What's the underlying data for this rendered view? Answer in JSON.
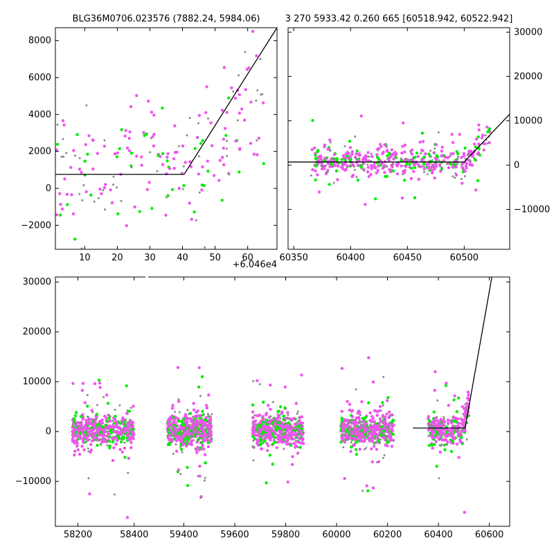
{
  "header": {
    "left_title": "BLG36M0706.023576 (7882.24, 5984.06)",
    "right_title": "3 270 5933.42 0.260 665 [60518.942, 60522.942]",
    "offset_label": "+6.046e4"
  },
  "colors": {
    "green": "#00ee00",
    "magenta": "#ee55ee",
    "grey": "#888888",
    "line": "#000000"
  },
  "chart_data": [
    {
      "name": "zoom-left",
      "type": "scatter",
      "title": "",
      "xlim": [
        1,
        69
      ],
      "ylim": [
        -3300,
        8700
      ],
      "xticks": [
        10,
        20,
        30,
        40,
        50,
        60
      ],
      "yticks": [
        -2000,
        0,
        2000,
        4000,
        6000,
        8000
      ],
      "model_line": [
        [
          1,
          760
        ],
        [
          40.5,
          760
        ],
        [
          69,
          8700
        ]
      ]
    },
    {
      "name": "zoom-right",
      "type": "scatter",
      "title": "",
      "xlim": [
        60345,
        60540
      ],
      "ylim": [
        -19000,
        31000
      ],
      "xticks": [
        60350,
        60400,
        60450,
        60500
      ],
      "yticks": [
        -10000,
        0,
        10000,
        20000,
        30000
      ],
      "yaxis_side": "right",
      "model_line": [
        [
          60345,
          700
        ],
        [
          60500,
          700
        ],
        [
          60540,
          11500
        ]
      ]
    },
    {
      "name": "full-light-curve",
      "type": "scatter",
      "title": "",
      "xlim": [
        58120,
        60680
      ],
      "ylim": [
        -19000,
        31000
      ],
      "xticks": [
        58200,
        58400,
        59400,
        59600,
        59800,
        60000,
        60200,
        60400,
        60600
      ],
      "yticks": [
        -10000,
        0,
        10000,
        20000,
        30000
      ],
      "model_line": [
        [
          60300,
          700
        ],
        [
          60505,
          700
        ],
        [
          60610,
          31000
        ]
      ],
      "seasons": [
        {
          "x": [
            58180,
            58400
          ],
          "n": 560
        },
        {
          "x": [
            59335,
            59510
          ],
          "n": 560
        },
        {
          "x": [
            59670,
            59870
          ],
          "n": 520
        },
        {
          "x": [
            60015,
            60225
          ],
          "n": 540
        },
        {
          "x": [
            60360,
            60520
          ],
          "n": 320
        }
      ]
    }
  ]
}
